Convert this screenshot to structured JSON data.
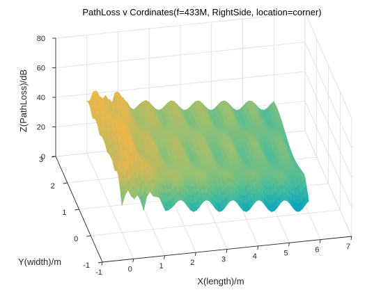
{
  "chart_data": {
    "type": "surface",
    "title": "PathLoss v Cordinates(f=433M, RightSide, location=corner)",
    "xlabel": "X(length)/m",
    "ylabel": "Y(width)/m",
    "zlabel": "Z(PathLoss)/dB",
    "xlim": [
      -1,
      7
    ],
    "ylim": [
      -1,
      3
    ],
    "zlim": [
      0,
      80
    ],
    "x_ticks": [
      "-1",
      "0",
      "1",
      "2",
      "3",
      "4",
      "5",
      "6",
      "7"
    ],
    "y_ticks": [
      "-1",
      "0",
      "1",
      "2",
      "3"
    ],
    "z_ticks": [
      "0",
      "20",
      "40",
      "60",
      "80"
    ],
    "grid": true,
    "colormap": "parula",
    "surface": {
      "x_range": [
        0,
        6.0
      ],
      "y_range": [
        0,
        3.0
      ],
      "base_z_range": [
        15,
        45
      ],
      "description_free": true
    }
  }
}
